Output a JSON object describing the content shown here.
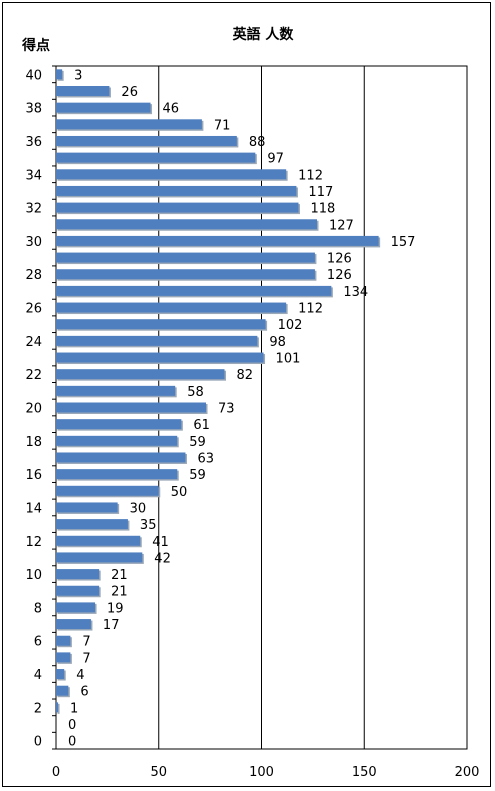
{
  "chart_data": {
    "type": "bar",
    "orientation": "horizontal",
    "title": "英語 人数",
    "ylabel": "得点",
    "xlabel": "",
    "categories": [
      40,
      39,
      38,
      37,
      36,
      35,
      34,
      33,
      32,
      31,
      30,
      29,
      28,
      27,
      26,
      25,
      24,
      23,
      22,
      21,
      20,
      19,
      18,
      17,
      16,
      15,
      14,
      13,
      12,
      11,
      10,
      9,
      8,
      7,
      6,
      5,
      4,
      3,
      2,
      1,
      0
    ],
    "values": [
      3,
      26,
      46,
      71,
      88,
      97,
      112,
      117,
      118,
      127,
      157,
      126,
      126,
      134,
      112,
      102,
      98,
      101,
      82,
      58,
      73,
      61,
      59,
      63,
      59,
      50,
      30,
      35,
      41,
      42,
      21,
      21,
      19,
      17,
      7,
      7,
      4,
      6,
      1,
      0,
      0
    ],
    "y_tick_labels": [
      "40",
      "38",
      "36",
      "34",
      "32",
      "30",
      "28",
      "26",
      "24",
      "22",
      "20",
      "18",
      "16",
      "14",
      "12",
      "10",
      "8",
      "6",
      "4",
      "2",
      "0"
    ],
    "x_tick_labels": [
      "0",
      "50",
      "100",
      "150",
      "200"
    ],
    "xlim": [
      0,
      200
    ],
    "grid": "vertical",
    "bar_color": "#4f7fbf"
  }
}
